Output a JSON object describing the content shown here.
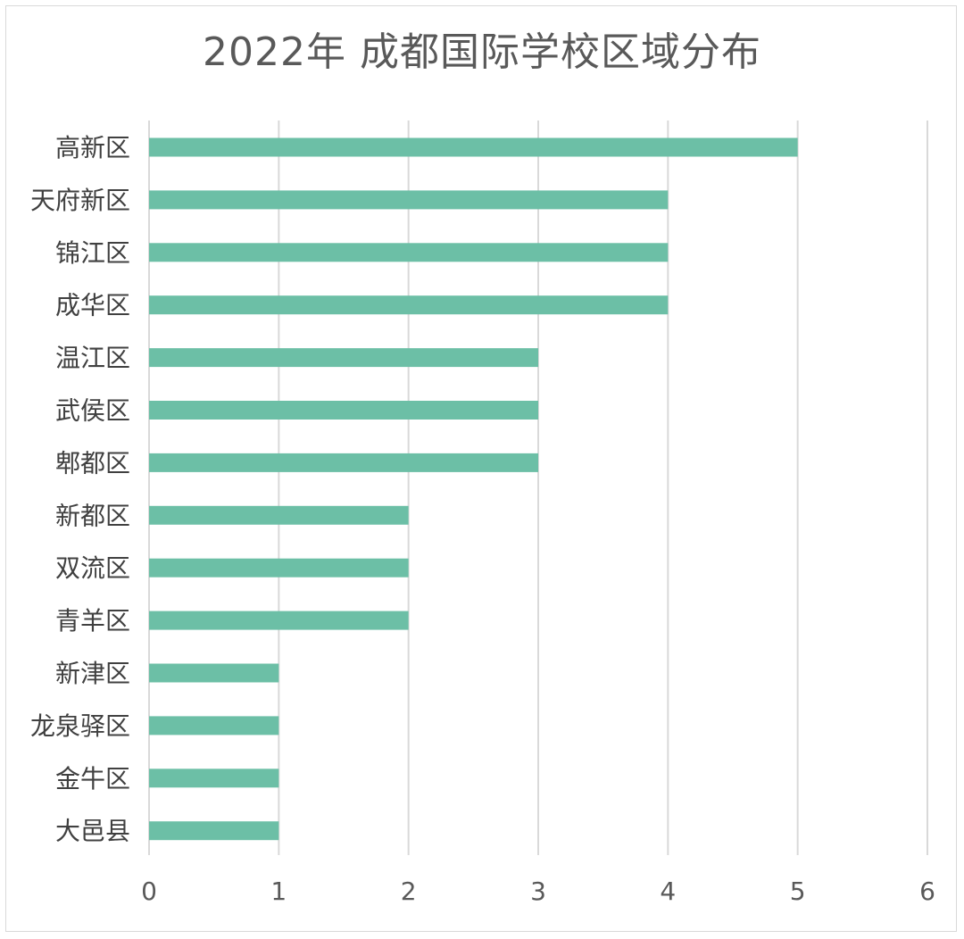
{
  "chart_data": {
    "type": "bar",
    "orientation": "horizontal",
    "title": "2022年 成都国际学校区域分布",
    "xlabel": "",
    "ylabel": "",
    "categories": [
      "高新区",
      "天府新区",
      "锦江区",
      "成华区",
      "温江区",
      "武侯区",
      "郫都区",
      "新都区",
      "双流区",
      "青羊区",
      "新津区",
      "龙泉驿区",
      "金牛区",
      "大邑县"
    ],
    "values": [
      5,
      4,
      4,
      4,
      3,
      3,
      3,
      2,
      2,
      2,
      1,
      1,
      1,
      1
    ],
    "xlim": [
      0,
      6
    ],
    "x_ticks": [
      "0",
      "1",
      "2",
      "3",
      "4",
      "5",
      "6"
    ],
    "grid": "vertical",
    "legend": "none",
    "bar_color": "#6cbfa6",
    "grid_color": "#d9d9d9"
  }
}
